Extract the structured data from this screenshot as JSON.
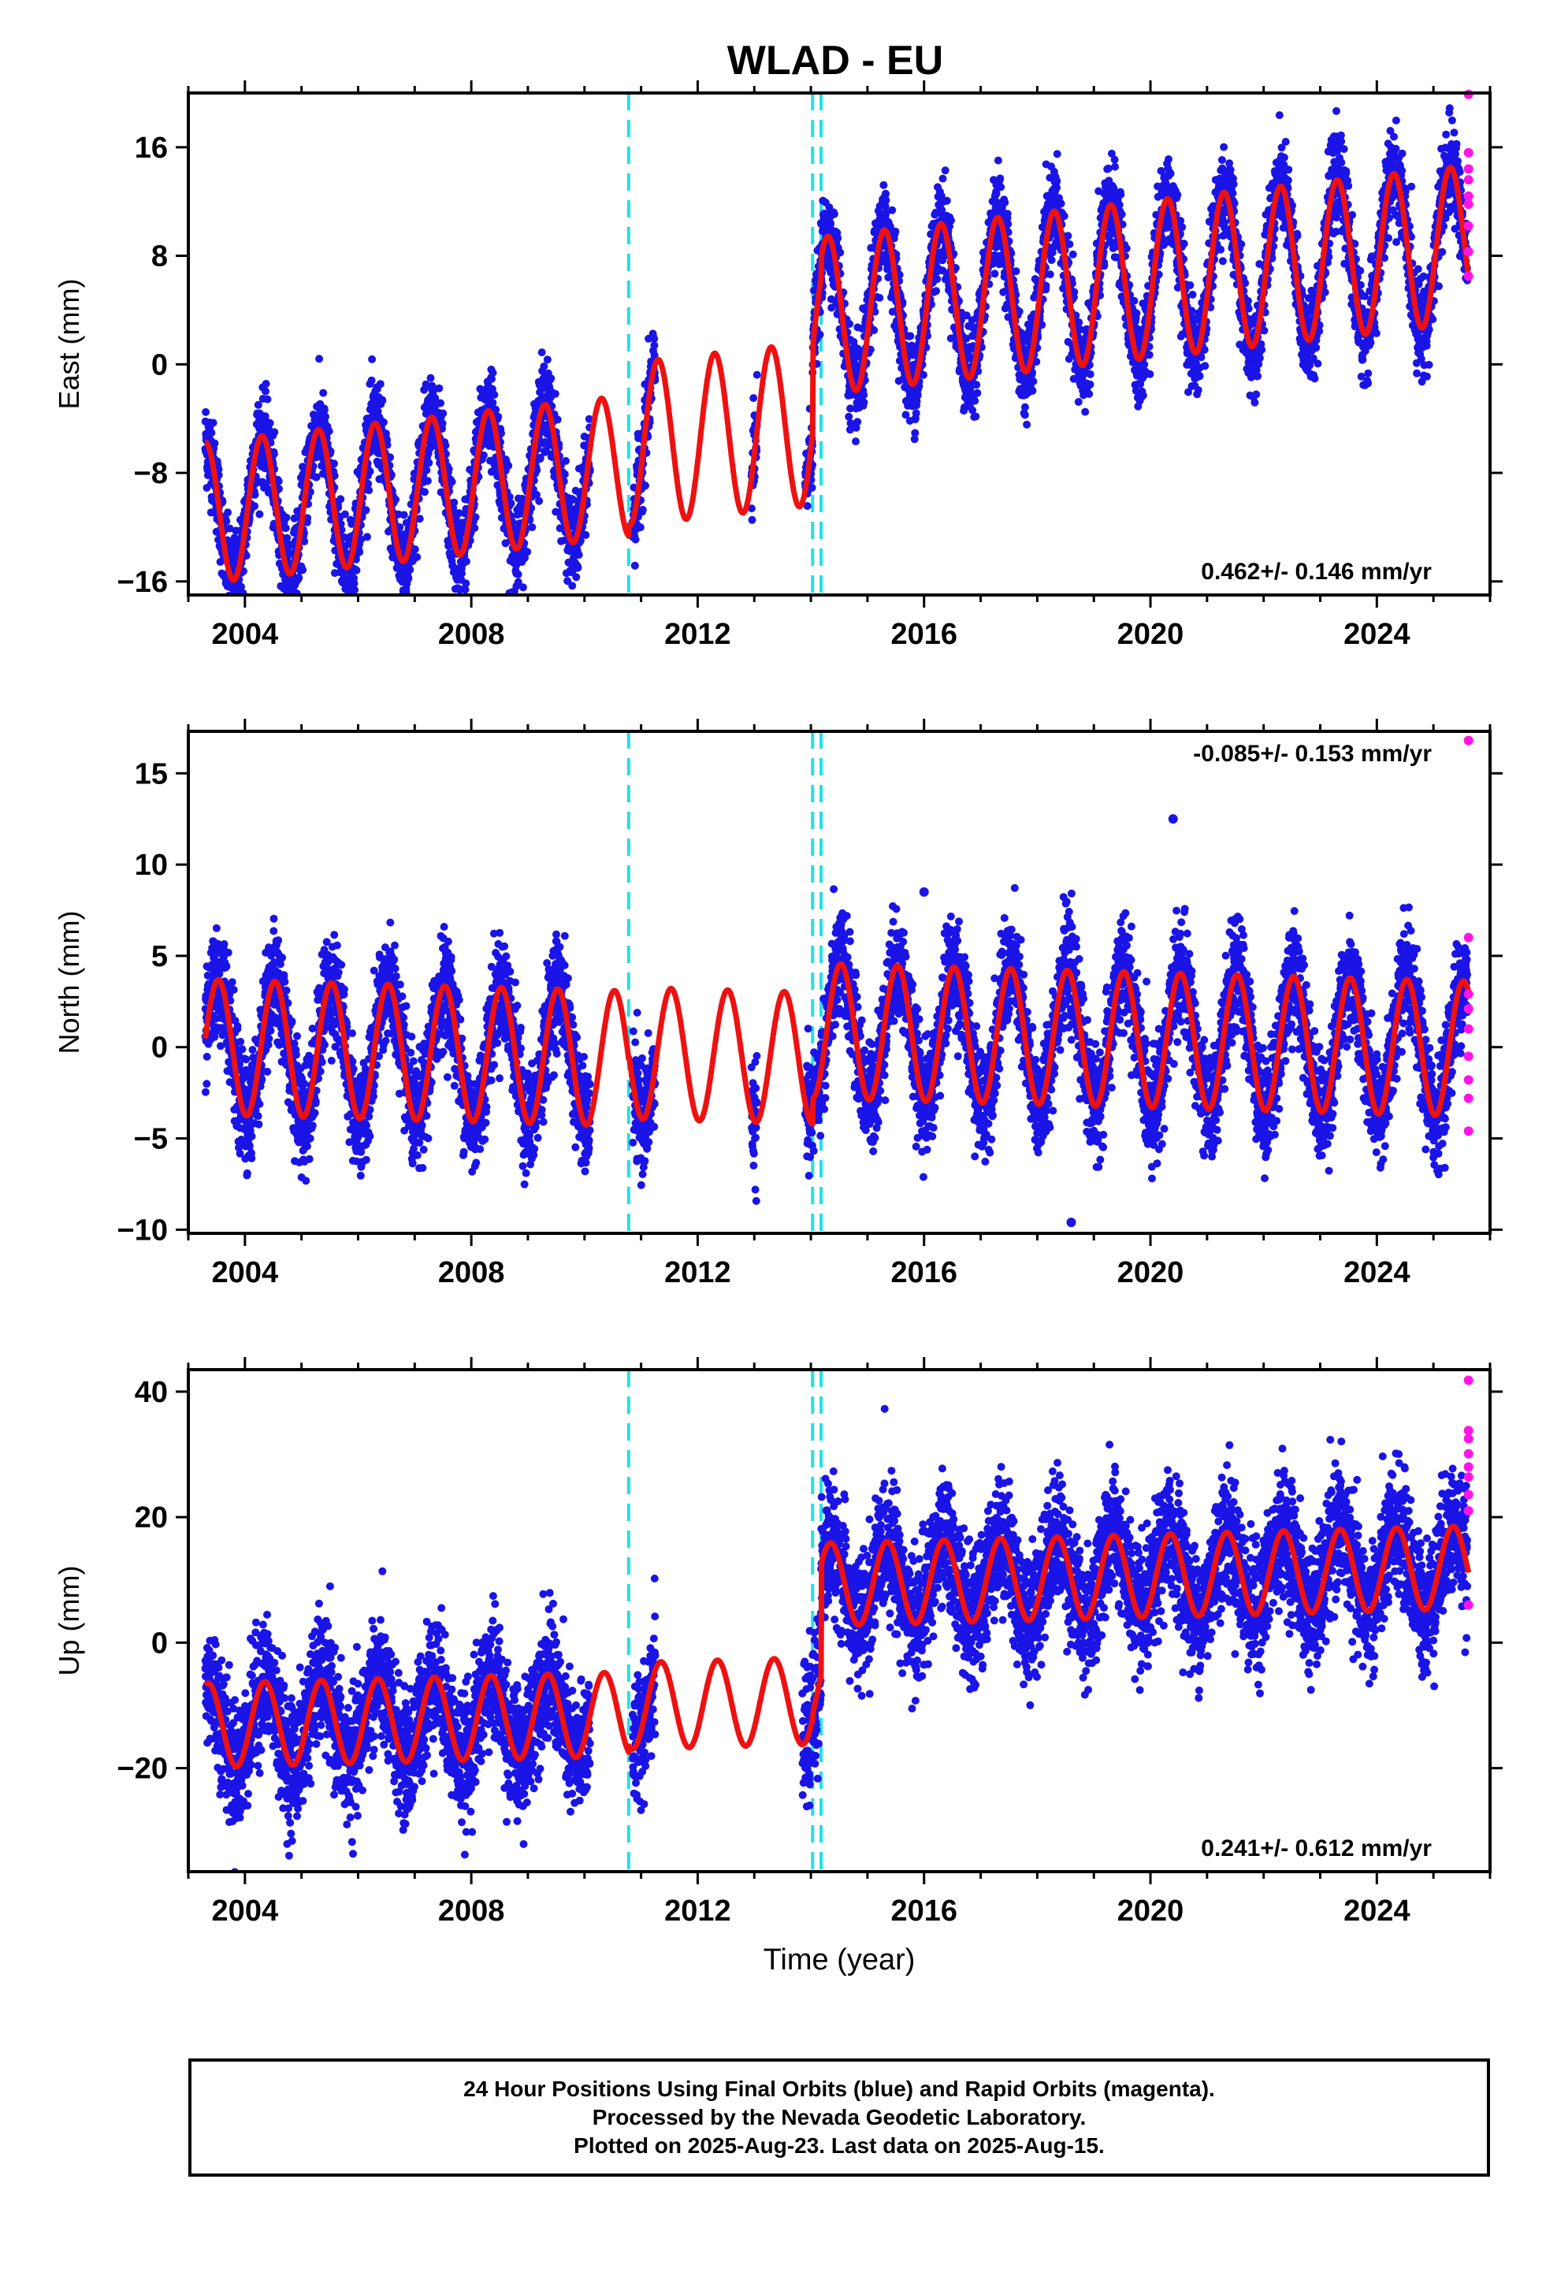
{
  "title": "WLAD - EU",
  "colors": {
    "final": "#1a14e6",
    "rapid": "#ff14e6",
    "model": "#ee1111",
    "break": "#22e0e8",
    "axis": "#000000"
  },
  "footer": {
    "line1": "24 Hour Positions Using Final Orbits (blue) and Rapid Orbits (magenta).",
    "line2": "Processed by the Nevada Geodetic Laboratory.",
    "line3": "Plotted on 2025-Aug-23. Last data on 2025-Aug-15."
  },
  "chart_data": [
    {
      "type": "scatter",
      "ylabel": "East (mm)",
      "xlabel": "",
      "xlim": [
        2003.0,
        2026.0
      ],
      "ylim": [
        -17,
        20
      ],
      "yticks": [
        -16,
        -8,
        0,
        8,
        16
      ],
      "xticks": [
        2004,
        2008,
        2012,
        2016,
        2020,
        2024
      ],
      "rate": "0.462+/- 0.146 mm/yr",
      "rate_position": "bottom-right",
      "breaks": [
        2010.78,
        2014.03,
        2014.18
      ],
      "segments": [
        {
          "start": 2003.3,
          "end": 2010.78,
          "offset": -6.0,
          "amp": 5.2,
          "phase": 0.05,
          "rate": 0.462
        },
        {
          "start": 2010.78,
          "end": 2014.03,
          "offset": -4.4,
          "amp": 6.0,
          "phase": 0.05,
          "rate": 0.462
        },
        {
          "start": 2014.03,
          "end": 2014.18,
          "offset": 2.0,
          "amp": 5.8,
          "phase": 0.05,
          "rate": 0.462
        },
        {
          "start": 2014.18,
          "end": 2025.62,
          "offset": 3.5,
          "amp": 5.8,
          "phase": 0.05,
          "rate": 0.462
        }
      ],
      "data_spans": [
        [
          2003.3,
          2010.1
        ],
        [
          2010.85,
          2011.25
        ],
        [
          2012.95,
          2013.05
        ],
        [
          2013.9,
          2025.6
        ]
      ],
      "scatter_sd": 1.6,
      "rapid": [
        19.9,
        15.6,
        14.4,
        13.6,
        12.4,
        11.8,
        10.2,
        8.3,
        6.5
      ]
    },
    {
      "type": "scatter",
      "ylabel": "North (mm)",
      "xlabel": "",
      "xlim": [
        2003.0,
        2026.0
      ],
      "ylim": [
        -10.2,
        17.3
      ],
      "yticks": [
        -10,
        -5,
        0,
        5,
        10,
        15
      ],
      "xticks": [
        2004,
        2008,
        2012,
        2016,
        2020,
        2024
      ],
      "rate": "-0.085+/- 0.153 mm/yr",
      "rate_position": "top-right",
      "breaks": [
        2010.78,
        2014.03,
        2014.18
      ],
      "segments": [
        {
          "start": 2003.3,
          "end": 2010.78,
          "offset": -0.9,
          "amp": 3.7,
          "phase": 0.28,
          "rate": -0.085
        },
        {
          "start": 2010.78,
          "end": 2014.03,
          "offset": -0.6,
          "amp": 3.6,
          "phase": 0.28,
          "rate": -0.085
        },
        {
          "start": 2014.03,
          "end": 2014.18,
          "offset": 0.9,
          "amp": 3.7,
          "phase": 0.28,
          "rate": -0.085
        },
        {
          "start": 2014.18,
          "end": 2025.62,
          "offset": 0.9,
          "amp": 3.7,
          "phase": 0.28,
          "rate": -0.085
        }
      ],
      "data_spans": [
        [
          2003.3,
          2010.1
        ],
        [
          2010.85,
          2011.25
        ],
        [
          2012.95,
          2013.05
        ],
        [
          2013.9,
          2025.6
        ]
      ],
      "scatter_sd": 1.45,
      "outliers": [
        [
          2020.4,
          12.5
        ],
        [
          2016.0,
          8.5
        ],
        [
          2018.6,
          -9.6
        ]
      ],
      "rapid": [
        16.8,
        6.0,
        2.9,
        2.1,
        1.0,
        -0.5,
        -1.8,
        -2.8,
        -4.6
      ]
    },
    {
      "type": "scatter",
      "ylabel": "Up (mm)",
      "xlabel": "Time (year)",
      "xlim": [
        2003.0,
        2026.0
      ],
      "ylim": [
        -36.5,
        43.5
      ],
      "yticks": [
        -20,
        0,
        20,
        40
      ],
      "xticks": [
        2004,
        2008,
        2012,
        2016,
        2020,
        2024
      ],
      "rate": "0.241+/- 0.612 mm/yr",
      "rate_position": "bottom-right",
      "breaks": [
        2010.78,
        2014.03,
        2014.18
      ],
      "segments": [
        {
          "start": 2003.3,
          "end": 2010.78,
          "offset": -10.6,
          "amp": 6.7,
          "phase": 0.1,
          "rate": 0.241
        },
        {
          "start": 2010.78,
          "end": 2014.03,
          "offset": -9.3,
          "amp": 6.9,
          "phase": 0.1,
          "rate": 0.241
        },
        {
          "start": 2014.03,
          "end": 2014.18,
          "offset": -8.6,
          "amp": 6.6,
          "phase": 0.1,
          "rate": 0.241
        },
        {
          "start": 2014.18,
          "end": 2025.62,
          "offset": 9.2,
          "amp": 6.6,
          "phase": 0.1,
          "rate": 0.241
        }
      ],
      "data_spans": [
        [
          2003.3,
          2010.1
        ],
        [
          2010.85,
          2011.25
        ],
        [
          2013.85,
          2025.6
        ]
      ],
      "scatter_sd": 5.0,
      "rapid": [
        41.8,
        33.8,
        32.5,
        30.1,
        28.0,
        26.4,
        23.6,
        21.0,
        6.0
      ]
    }
  ]
}
